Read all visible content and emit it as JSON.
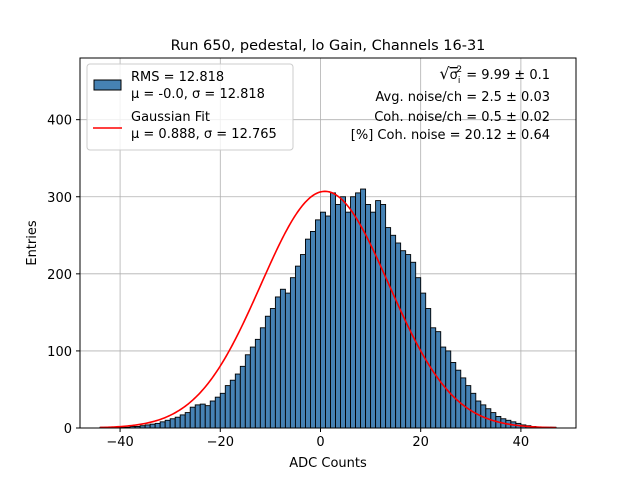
{
  "chart_data": {
    "type": "bar",
    "title": "Run 650, pedestal, lo Gain, Channels 16-31",
    "xlabel": "ADC Counts",
    "ylabel": "Entries",
    "xlim": [
      -48,
      51
    ],
    "ylim": [
      0,
      480
    ],
    "xticks": [
      -40,
      -20,
      0,
      20,
      40
    ],
    "yticks": [
      0,
      100,
      200,
      300,
      400
    ],
    "xtick_labels": [
      "−40",
      "−20",
      "0",
      "20",
      "40"
    ],
    "ytick_labels": [
      "0",
      "100",
      "200",
      "300",
      "400"
    ],
    "grid": true,
    "legend_position": "top-left",
    "histogram": {
      "name": "RMS = 12.818",
      "name_line2": "μ = -0.0, σ = 12.818",
      "bin_width": 1,
      "bin_start": -44,
      "values": [
        1,
        1,
        1,
        1,
        1,
        1,
        2,
        2,
        3,
        4,
        5,
        6,
        8,
        10,
        12,
        14,
        17,
        20,
        27,
        30,
        31,
        29,
        35,
        40,
        45,
        55,
        62,
        70,
        80,
        95,
        105,
        115,
        130,
        145,
        155,
        170,
        180,
        175,
        195,
        210,
        225,
        245,
        255,
        270,
        280,
        275,
        305,
        290,
        300,
        280,
        300,
        305,
        310,
        290,
        280,
        295,
        290,
        260,
        250,
        240,
        230,
        225,
        215,
        195,
        175,
        155,
        130,
        125,
        105,
        100,
        85,
        75,
        65,
        55,
        45,
        35,
        30,
        25,
        20,
        15,
        12,
        10,
        8,
        6,
        4,
        3,
        2,
        1,
        1,
        1,
        1
      ]
    },
    "series": [
      {
        "name": "Gaussian Fit",
        "name_line2": "μ = 0.888, σ = 12.765",
        "mu": 0.888,
        "sigma": 12.765,
        "amplitude": 307,
        "x_range": [
          -44,
          47
        ]
      }
    ],
    "annotations": {
      "sigma_prefix": "√",
      "sigma_symbol": "σ",
      "sigma_sub": "i",
      "sigma_sup": "2",
      "sigma_value": " = 9.99 ± 0.1",
      "line2": "Avg. noise/ch = 2.5 ± 0.03",
      "line3": "Coh. noise/ch = 0.5 ± 0.02",
      "line4": "[%] Coh. noise = 20.12 ± 0.64"
    },
    "colors": {
      "bar_fill": "#4682b4",
      "bar_edge": "#000000",
      "fit_line": "#ff0000",
      "grid": "#b0b0b0"
    }
  }
}
